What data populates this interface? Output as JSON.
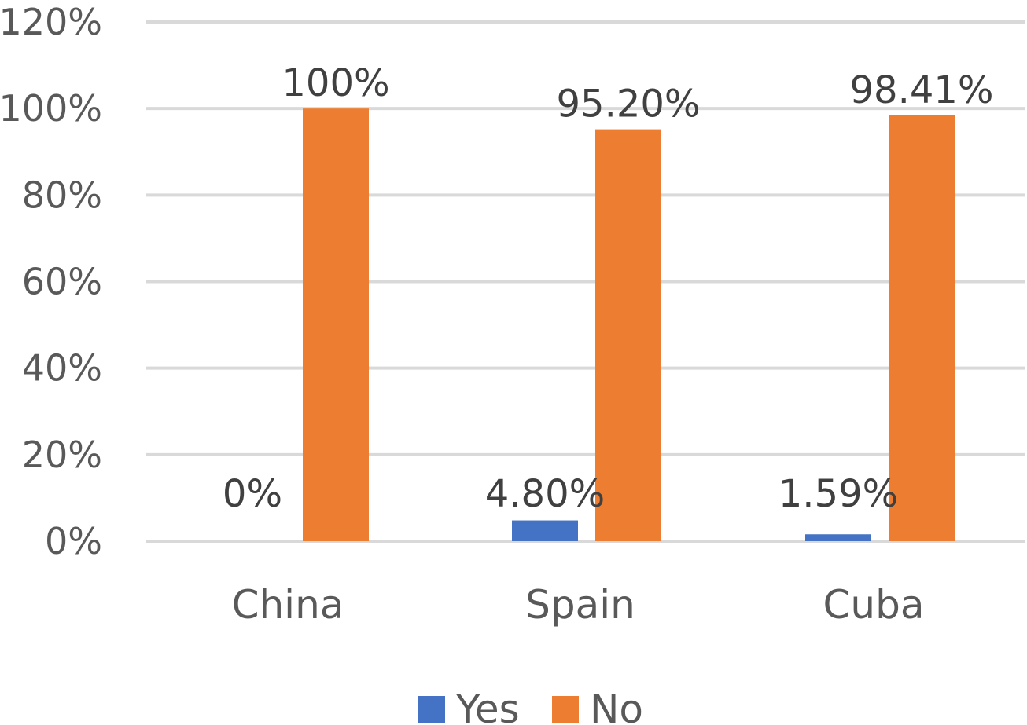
{
  "chart_data": {
    "type": "bar",
    "categories": [
      "China",
      "Spain",
      "Cuba"
    ],
    "series": [
      {
        "name": "Yes",
        "color": "#4472c4",
        "values": [
          0,
          4.8,
          1.59
        ],
        "labels": [
          "0%",
          "4.80%",
          "1.59%"
        ]
      },
      {
        "name": "No",
        "color": "#ed7d31",
        "values": [
          100,
          95.2,
          98.41
        ],
        "labels": [
          "100%",
          "95.20%",
          "98.41%"
        ]
      }
    ],
    "yticks": [
      0,
      20,
      40,
      60,
      80,
      100,
      120
    ],
    "ytick_labels": [
      "0%",
      "20%",
      "40%",
      "60%",
      "80%",
      "100%",
      "120%"
    ],
    "ylim": [
      0,
      120
    ],
    "title": "",
    "xlabel": "",
    "ylabel": "",
    "grid": true,
    "legend_position": "bottom"
  }
}
